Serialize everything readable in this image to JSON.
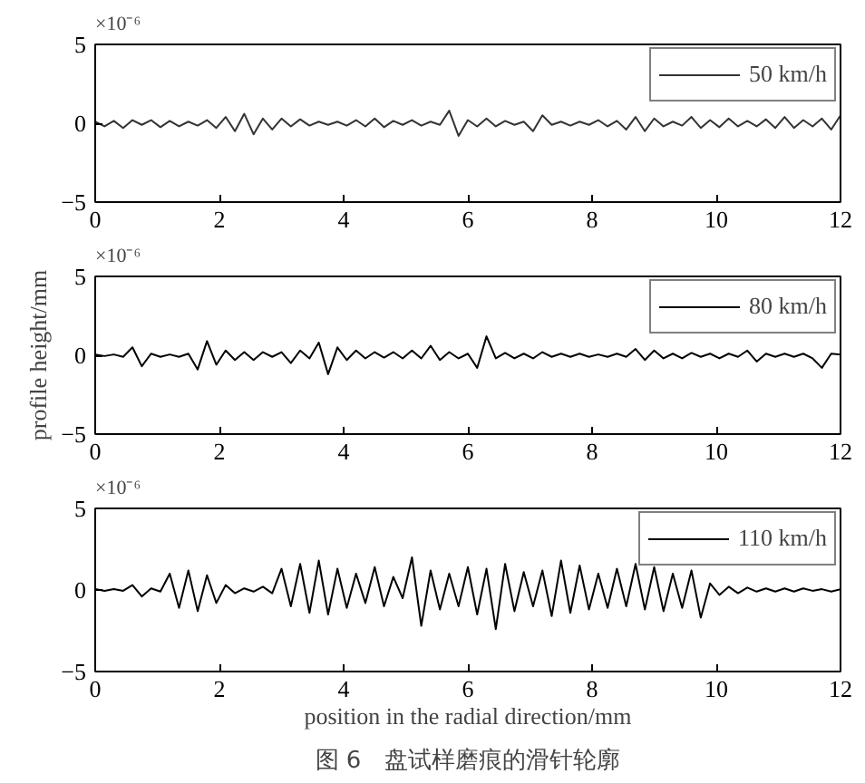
{
  "chart_data": [
    {
      "type": "line",
      "annotations": [
        "×10⁻⁶"
      ],
      "xlim": [
        0,
        12
      ],
      "ylim": [
        -5,
        5
      ],
      "xticks": [
        0,
        2,
        4,
        6,
        8,
        10,
        12
      ],
      "yticks": [
        -5,
        0,
        5
      ],
      "legend": "top right",
      "grid": false,
      "x": [
        0,
        0.15,
        0.3,
        0.45,
        0.6,
        0.75,
        0.9,
        1.05,
        1.2,
        1.35,
        1.5,
        1.65,
        1.8,
        1.95,
        2.1,
        2.25,
        2.4,
        2.55,
        2.7,
        2.85,
        3,
        3.15,
        3.3,
        3.45,
        3.6,
        3.75,
        3.9,
        4.05,
        4.2,
        4.35,
        4.5,
        4.65,
        4.8,
        4.95,
        5.1,
        5.25,
        5.4,
        5.55,
        5.7,
        5.85,
        6,
        6.15,
        6.3,
        6.45,
        6.6,
        6.75,
        6.9,
        7.05,
        7.2,
        7.35,
        7.5,
        7.65,
        7.8,
        7.95,
        8.1,
        8.25,
        8.4,
        8.55,
        8.7,
        8.85,
        9,
        9.15,
        9.3,
        9.45,
        9.6,
        9.75,
        9.9,
        10.05,
        10.2,
        10.35,
        10.5,
        10.65,
        10.8,
        10.95,
        11.1,
        11.25,
        11.4,
        11.55,
        11.7,
        11.85,
        12
      ],
      "series": [
        {
          "name": "50 km/h",
          "color": "#333333",
          "values": [
            0.1,
            -0.2,
            0.15,
            -0.3,
            0.2,
            -0.1,
            0.2,
            -0.25,
            0.15,
            -0.2,
            0.1,
            -0.15,
            0.2,
            -0.3,
            0.4,
            -0.5,
            0.6,
            -0.7,
            0.3,
            -0.4,
            0.3,
            -0.2,
            0.25,
            -0.15,
            0.1,
            -0.1,
            0.1,
            -0.15,
            0.2,
            -0.2,
            0.3,
            -0.25,
            0.15,
            -0.1,
            0.2,
            -0.15,
            0.1,
            -0.1,
            0.8,
            -0.8,
            0.2,
            -0.2,
            0.3,
            -0.2,
            0.15,
            -0.1,
            0.1,
            -0.5,
            0.5,
            -0.1,
            0.1,
            -0.15,
            0.1,
            -0.1,
            0.2,
            -0.2,
            0.15,
            -0.4,
            0.4,
            -0.5,
            0.3,
            -0.2,
            0.1,
            -0.15,
            0.4,
            -0.3,
            0.2,
            -0.25,
            0.3,
            -0.2,
            0.15,
            -0.2,
            0.25,
            -0.3,
            0.4,
            -0.3,
            0.2,
            -0.2,
            0.3,
            -0.4,
            0.5
          ]
        }
      ]
    },
    {
      "type": "line",
      "annotations": [
        "×10⁻⁶"
      ],
      "ylabel": "profile height/mm",
      "xlim": [
        0,
        12
      ],
      "ylim": [
        -5,
        5
      ],
      "xticks": [
        0,
        2,
        4,
        6,
        8,
        10,
        12
      ],
      "yticks": [
        -5,
        0,
        5
      ],
      "legend": "top right",
      "grid": false,
      "x": [
        0,
        0.15,
        0.3,
        0.45,
        0.6,
        0.75,
        0.9,
        1.05,
        1.2,
        1.35,
        1.5,
        1.65,
        1.8,
        1.95,
        2.1,
        2.25,
        2.4,
        2.55,
        2.7,
        2.85,
        3,
        3.15,
        3.3,
        3.45,
        3.6,
        3.75,
        3.9,
        4.05,
        4.2,
        4.35,
        4.5,
        4.65,
        4.8,
        4.95,
        5.1,
        5.25,
        5.4,
        5.55,
        5.7,
        5.85,
        6,
        6.15,
        6.3,
        6.45,
        6.6,
        6.75,
        6.9,
        7.05,
        7.2,
        7.35,
        7.5,
        7.65,
        7.8,
        7.95,
        8.1,
        8.25,
        8.4,
        8.55,
        8.7,
        8.85,
        9,
        9.15,
        9.3,
        9.45,
        9.6,
        9.75,
        9.9,
        10.05,
        10.2,
        10.35,
        10.5,
        10.65,
        10.8,
        10.95,
        11.1,
        11.25,
        11.4,
        11.55,
        11.7,
        11.85,
        12
      ],
      "series": [
        {
          "name": "80 km/h",
          "color": "#000000",
          "values": [
            0.05,
            -0.05,
            0.05,
            -0.1,
            0.5,
            -0.7,
            0.1,
            -0.1,
            0.05,
            -0.1,
            0.1,
            -0.9,
            0.9,
            -0.6,
            0.3,
            -0.3,
            0.2,
            -0.3,
            0.2,
            -0.1,
            0.2,
            -0.5,
            0.3,
            -0.2,
            0.8,
            -1.2,
            0.5,
            -0.3,
            0.3,
            -0.2,
            0.2,
            -0.15,
            0.2,
            -0.2,
            0.3,
            -0.2,
            0.6,
            -0.3,
            0.2,
            -0.2,
            0.1,
            -0.8,
            1.2,
            -0.2,
            0.15,
            -0.2,
            0.1,
            -0.2,
            0.2,
            -0.1,
            0.1,
            -0.1,
            0.1,
            -0.1,
            0.05,
            -0.1,
            0.1,
            -0.1,
            0.4,
            -0.3,
            0.3,
            -0.2,
            0.1,
            -0.2,
            0.15,
            -0.1,
            0.1,
            -0.2,
            0.1,
            -0.1,
            0.3,
            -0.4,
            0.1,
            -0.1,
            0.1,
            -0.1,
            0.1,
            -0.2,
            -0.8,
            0.1,
            0.05
          ]
        }
      ]
    },
    {
      "type": "line",
      "annotations": [
        "×10⁻⁶",
        "图 6　盘试样磨痕的滑针轮廓"
      ],
      "xlabel": "position in the radial direction/mm",
      "xlim": [
        0,
        12
      ],
      "ylim": [
        -5,
        5
      ],
      "xticks": [
        0,
        2,
        4,
        6,
        8,
        10,
        12
      ],
      "yticks": [
        -5,
        0,
        5
      ],
      "legend": "top right",
      "grid": false,
      "x": [
        0,
        0.15,
        0.3,
        0.45,
        0.6,
        0.75,
        0.9,
        1.05,
        1.2,
        1.35,
        1.5,
        1.65,
        1.8,
        1.95,
        2.1,
        2.25,
        2.4,
        2.55,
        2.7,
        2.85,
        3,
        3.15,
        3.3,
        3.45,
        3.6,
        3.75,
        3.9,
        4.05,
        4.2,
        4.35,
        4.5,
        4.65,
        4.8,
        4.95,
        5.1,
        5.25,
        5.4,
        5.55,
        5.7,
        5.85,
        6,
        6.15,
        6.3,
        6.45,
        6.6,
        6.75,
        6.9,
        7.05,
        7.2,
        7.35,
        7.5,
        7.65,
        7.8,
        7.95,
        8.1,
        8.25,
        8.4,
        8.55,
        8.7,
        8.85,
        9,
        9.15,
        9.3,
        9.45,
        9.6,
        9.75,
        9.9,
        10.05,
        10.2,
        10.35,
        10.5,
        10.65,
        10.8,
        10.95,
        11.1,
        11.25,
        11.4,
        11.55,
        11.7,
        11.85,
        12
      ],
      "series": [
        {
          "name": "110 km/h",
          "color": "#000000",
          "values": [
            0.05,
            -0.05,
            0.05,
            -0.05,
            0.3,
            -0.4,
            0.1,
            -0.1,
            1.0,
            -1.1,
            1.2,
            -1.3,
            0.9,
            -0.8,
            0.3,
            -0.2,
            0.1,
            -0.1,
            0.2,
            -0.2,
            1.3,
            -1.0,
            1.6,
            -1.4,
            1.8,
            -1.5,
            1.3,
            -1.1,
            1.0,
            -0.8,
            1.4,
            -1.0,
            0.8,
            -0.5,
            2.0,
            -2.2,
            1.2,
            -1.2,
            1.0,
            -1.0,
            1.4,
            -1.5,
            1.3,
            -2.4,
            1.6,
            -1.3,
            1.1,
            -1.0,
            1.2,
            -1.6,
            1.8,
            -1.4,
            1.5,
            -1.2,
            1.0,
            -1.1,
            1.3,
            -1.0,
            1.6,
            -1.2,
            1.4,
            -1.3,
            1.0,
            -1.1,
            1.2,
            -1.7,
            0.4,
            -0.3,
            0.2,
            -0.2,
            0.15,
            -0.1,
            0.1,
            -0.1,
            0.1,
            -0.1,
            0.1,
            -0.05,
            0.05,
            -0.1,
            0.05
          ]
        }
      ]
    }
  ]
}
